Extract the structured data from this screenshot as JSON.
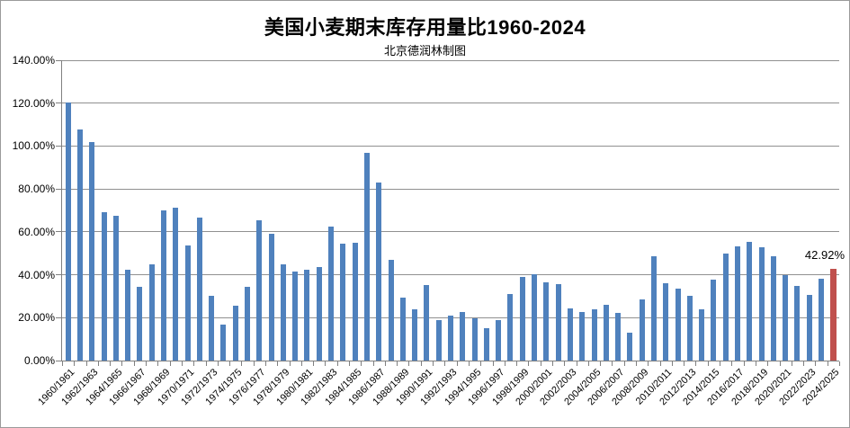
{
  "colors": {
    "bar": "#4F81BD",
    "highlight": "#C0504D",
    "gridline": "#909090",
    "axis": "#808080",
    "border": "#9a9a9a",
    "background": "#FFFFFF",
    "text": "#000000"
  },
  "chart_data": {
    "type": "bar",
    "title": "美国小麦期末库存用量比1960-2024",
    "subtitle": "北京德润林制图",
    "xlabel": "",
    "ylabel": "",
    "ylim": [
      0,
      140
    ],
    "grid": true,
    "legend": "none",
    "ytick_values": [
      0,
      20,
      40,
      60,
      80,
      100,
      120,
      140
    ],
    "ytick_labels": [
      "0.00%",
      "20.00%",
      "40.00%",
      "60.00%",
      "80.00%",
      "100.00%",
      "120.00%",
      "140.00%"
    ],
    "xtick_every": 2,
    "categories": [
      "1960/1961",
      "1961/1962",
      "1962/1963",
      "1963/1964",
      "1964/1965",
      "1965/1966",
      "1966/1967",
      "1967/1968",
      "1968/1969",
      "1969/1970",
      "1970/1971",
      "1971/1972",
      "1972/1973",
      "1973/1974",
      "1974/1975",
      "1975/1976",
      "1976/1977",
      "1977/1978",
      "1978/1979",
      "1979/1980",
      "1980/1981",
      "1981/1982",
      "1982/1983",
      "1983/1984",
      "1984/1985",
      "1985/1986",
      "1986/1987",
      "1987/1988",
      "1988/1989",
      "1989/1990",
      "1990/1991",
      "1991/1992",
      "1992/1993",
      "1993/1994",
      "1994/1995",
      "1995/1996",
      "1996/1997",
      "1997/1998",
      "1998/1999",
      "1999/2000",
      "2000/2001",
      "2001/2002",
      "2002/2003",
      "2003/2004",
      "2004/2005",
      "2005/2006",
      "2006/2007",
      "2007/2008",
      "2008/2009",
      "2009/2010",
      "2010/2011",
      "2011/2012",
      "2012/2013",
      "2013/2014",
      "2014/2015",
      "2015/2016",
      "2016/2017",
      "2017/2018",
      "2018/2019",
      "2019/2020",
      "2020/2021",
      "2021/2022",
      "2022/2023",
      "2023/2024",
      "2024/2025"
    ],
    "values": [
      120.5,
      107.7,
      101.7,
      69.0,
      67.3,
      42.2,
      34.5,
      44.7,
      70.0,
      71.2,
      53.8,
      66.7,
      30.0,
      16.9,
      25.5,
      34.5,
      65.2,
      59.3,
      44.9,
      41.3,
      42.3,
      43.7,
      62.4,
      54.5,
      54.9,
      97.0,
      82.8,
      46.8,
      29.3,
      23.7,
      35.4,
      19.0,
      21.0,
      22.8,
      19.5,
      15.2,
      19.0,
      31.2,
      38.9,
      40.2,
      36.4,
      35.8,
      24.5,
      22.8,
      23.8,
      26.2,
      22.1,
      13.2,
      28.3,
      48.6,
      36.0,
      33.5,
      30.0,
      24.0,
      37.7,
      49.9,
      53.3,
      55.3,
      52.9,
      48.8,
      39.7,
      34.9,
      30.4,
      38.1,
      42.92
    ],
    "highlight_index": 64,
    "annotation": {
      "text": "42.92%",
      "index": 64
    }
  }
}
